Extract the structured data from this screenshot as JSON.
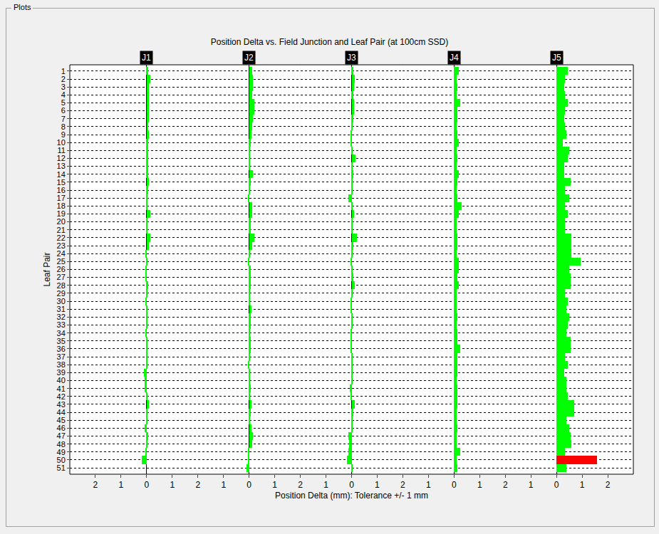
{
  "panel_title": "Plots",
  "chart_data": {
    "type": "bar",
    "orientation": "horizontal",
    "title": "Position Delta vs. Field Junction and Leaf Pair (at 100cm SSD)",
    "x_label": "Position Delta (mm): Tolerance +/- 1 mm",
    "y_label": "Leaf Pair",
    "grid": true,
    "categories": [
      "1",
      "2",
      "3",
      "4",
      "5",
      "6",
      "7",
      "8",
      "9",
      "10",
      "11",
      "12",
      "13",
      "14",
      "15",
      "16",
      "17",
      "18",
      "19",
      "20",
      "21",
      "22",
      "23",
      "24",
      "25",
      "26",
      "27",
      "28",
      "29",
      "30",
      "31",
      "32",
      "33",
      "34",
      "35",
      "36",
      "37",
      "38",
      "39",
      "40",
      "41",
      "42",
      "43",
      "44",
      "45",
      "46",
      "47",
      "48",
      "49",
      "50",
      "51"
    ],
    "series": [
      {
        "name": "J1",
        "color": "#00ff00",
        "xlim": [
          -3,
          2
        ],
        "xticks": [
          {
            "value": -2,
            "label": "2"
          },
          {
            "value": -1,
            "label": "1"
          },
          0,
          1,
          2
        ],
        "values": [
          0.05,
          0.15,
          0.1,
          0.08,
          0.1,
          0.1,
          0.08,
          0.06,
          0.08,
          0.05,
          0.05,
          0.05,
          0.05,
          0.05,
          0.1,
          0.05,
          0.03,
          0.03,
          0.15,
          0.03,
          0.02,
          0.15,
          0.1,
          -0.05,
          0.02,
          -0.05,
          -0.05,
          0.05,
          0.02,
          -0.05,
          0.03,
          0.03,
          0.02,
          -0.05,
          0.03,
          0.03,
          0.02,
          0.02,
          -0.1,
          -0.08,
          -0.08,
          0.02,
          0.08,
          0.02,
          0.02,
          -0.08,
          0.05,
          0.02,
          -0.05,
          -0.2,
          0
        ]
      },
      {
        "name": "J2",
        "color": "#00ff00",
        "xlim": [
          -2,
          2
        ],
        "xticks": [
          {
            "value": -1,
            "label": "1"
          },
          0,
          1,
          2
        ],
        "values": [
          0.1,
          0.15,
          0.15,
          0.1,
          0.2,
          0.2,
          0.15,
          0.1,
          0.08,
          0.05,
          0.03,
          0.03,
          0.03,
          0.15,
          0.05,
          0.03,
          -0.03,
          0.1,
          0.1,
          0.05,
          0.05,
          0.2,
          0.1,
          0.03,
          -0.03,
          0.05,
          0.05,
          0.05,
          0.03,
          0.03,
          0.08,
          0.05,
          0.05,
          0.03,
          0.05,
          0.05,
          0.03,
          -0.05,
          0.03,
          0.03,
          0.05,
          0.03,
          0.08,
          0.05,
          0.03,
          0.08,
          0.15,
          0.1,
          -0.03,
          -0.03,
          -0.1
        ]
      },
      {
        "name": "J3",
        "color": "#00ff00",
        "xlim": [
          -2,
          2
        ],
        "xticks": [
          {
            "value": -1,
            "label": "1"
          },
          0,
          1,
          2
        ],
        "values": [
          0.05,
          0.1,
          0.08,
          0.05,
          0.08,
          0.08,
          0.05,
          0.03,
          -0.03,
          -0.05,
          0.03,
          0.15,
          0.03,
          0.05,
          0.03,
          0.03,
          -0.15,
          0.03,
          0.08,
          0.03,
          0.03,
          0.2,
          0.05,
          0.03,
          -0.03,
          0.03,
          0.05,
          0.1,
          0.03,
          -0.03,
          -0.05,
          0.03,
          0.03,
          -0.03,
          -0.05,
          -0.05,
          0.03,
          0.03,
          0.03,
          0.03,
          -0.08,
          -0.05,
          0.1,
          0.05,
          0.03,
          0.03,
          -0.15,
          -0.1,
          -0.15,
          -0.2,
          0.03
        ]
      },
      {
        "name": "J4",
        "color": "#00ff00",
        "xlim": [
          -2,
          2
        ],
        "xticks": [
          {
            "value": -1,
            "label": "1"
          },
          0,
          1,
          2
        ],
        "values": [
          0.2,
          0.1,
          0.15,
          0.1,
          0.25,
          0.15,
          0.15,
          0.1,
          0.15,
          0.2,
          0.1,
          0.15,
          0.1,
          0.2,
          0.15,
          0.1,
          0.15,
          0.3,
          0.2,
          0.1,
          0.1,
          0.15,
          0.15,
          0.1,
          0.2,
          0.2,
          0.15,
          0.2,
          0.1,
          0.1,
          0.1,
          0.15,
          0.1,
          0.15,
          0.15,
          0.25,
          0.15,
          0.15,
          0.15,
          0.1,
          0.15,
          0.15,
          0.15,
          0.1,
          0.1,
          0.15,
          0.1,
          0.1,
          0.25,
          0.1,
          0.15
        ]
      },
      {
        "name": "J5",
        "xlim": [
          -2,
          3
        ],
        "xticks": [
          {
            "value": -1,
            "label": "1"
          },
          0,
          1,
          2
        ],
        "values": [
          0.45,
          0.35,
          0.3,
          0.35,
          0.45,
          0.35,
          0.3,
          0.35,
          0.4,
          0.25,
          0.5,
          0.45,
          0.3,
          0.3,
          0.55,
          0.35,
          0.5,
          0.35,
          0.45,
          0.35,
          0.35,
          0.6,
          0.6,
          0.6,
          0.95,
          0.5,
          0.55,
          0.55,
          0.35,
          0.45,
          0.4,
          0.5,
          0.45,
          0.4,
          0.55,
          0.55,
          0.35,
          0.45,
          0.3,
          0.4,
          0.4,
          0.45,
          0.7,
          0.7,
          0.4,
          0.5,
          0.55,
          0.6,
          0.35,
          1.6,
          0.4
        ],
        "colors": [
          "#00ff00",
          "#00ff00",
          "#00ff00",
          "#00ff00",
          "#00ff00",
          "#00ff00",
          "#00ff00",
          "#00ff00",
          "#00ff00",
          "#00ff00",
          "#00ff00",
          "#00ff00",
          "#00ff00",
          "#00ff00",
          "#00ff00",
          "#00ff00",
          "#00ff00",
          "#00ff00",
          "#00ff00",
          "#00ff00",
          "#00ff00",
          "#00ff00",
          "#00ff00",
          "#00ff00",
          "#00ff00",
          "#00ff00",
          "#00ff00",
          "#00ff00",
          "#00ff00",
          "#00ff00",
          "#00ff00",
          "#00ff00",
          "#00ff00",
          "#00ff00",
          "#00ff00",
          "#00ff00",
          "#00ff00",
          "#00ff00",
          "#00ff00",
          "#00ff00",
          "#00ff00",
          "#00ff00",
          "#00ff00",
          "#00ff00",
          "#00ff00",
          "#00ff00",
          "#00ff00",
          "#00ff00",
          "#00ff00",
          "#ff0000",
          "#00ff00"
        ]
      }
    ]
  }
}
